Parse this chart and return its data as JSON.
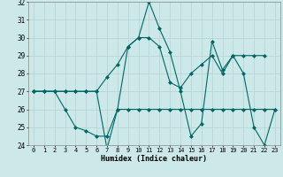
{
  "xlabel": "Humidex (Indice chaleur)",
  "bg_color": "#cde8e8",
  "grid_color": "#b8d4d4",
  "line_color": "#006666",
  "xmin": 0,
  "xmax": 23,
  "ymin": 24,
  "ymax": 32,
  "series": [
    {
      "x": [
        0,
        1,
        2,
        3,
        4,
        5,
        6,
        7,
        8,
        9,
        10,
        11,
        12,
        13,
        14,
        15,
        16,
        17,
        18,
        19,
        20,
        21,
        22
      ],
      "y": [
        27,
        27,
        27,
        27,
        27,
        27,
        27,
        27.8,
        28.5,
        29.5,
        30,
        30,
        29.5,
        27.5,
        27.2,
        28,
        28.5,
        29,
        28,
        29,
        29,
        29,
        29
      ]
    },
    {
      "x": [
        0,
        1,
        2,
        3,
        4,
        5,
        6,
        7,
        8,
        9,
        10,
        11,
        12,
        13,
        14,
        15,
        16,
        17,
        18,
        19,
        20,
        21,
        22,
        23
      ],
      "y": [
        27,
        27,
        27,
        27,
        27,
        27,
        27,
        23.8,
        26,
        29.5,
        30,
        32,
        30.5,
        29.2,
        27,
        24.5,
        25.2,
        29.8,
        28.2,
        29,
        28,
        25,
        24,
        26
      ]
    },
    {
      "x": [
        0,
        1,
        2,
        3,
        4,
        5,
        6,
        7,
        8,
        9,
        10,
        11,
        12,
        13,
        14,
        15,
        16,
        17,
        18,
        19,
        20,
        21,
        22,
        23
      ],
      "y": [
        27,
        27,
        27,
        26,
        25,
        24.8,
        24.5,
        24.5,
        26,
        26,
        26,
        26,
        26,
        26,
        26,
        26,
        26,
        26,
        26,
        26,
        26,
        26,
        26,
        26
      ]
    }
  ]
}
